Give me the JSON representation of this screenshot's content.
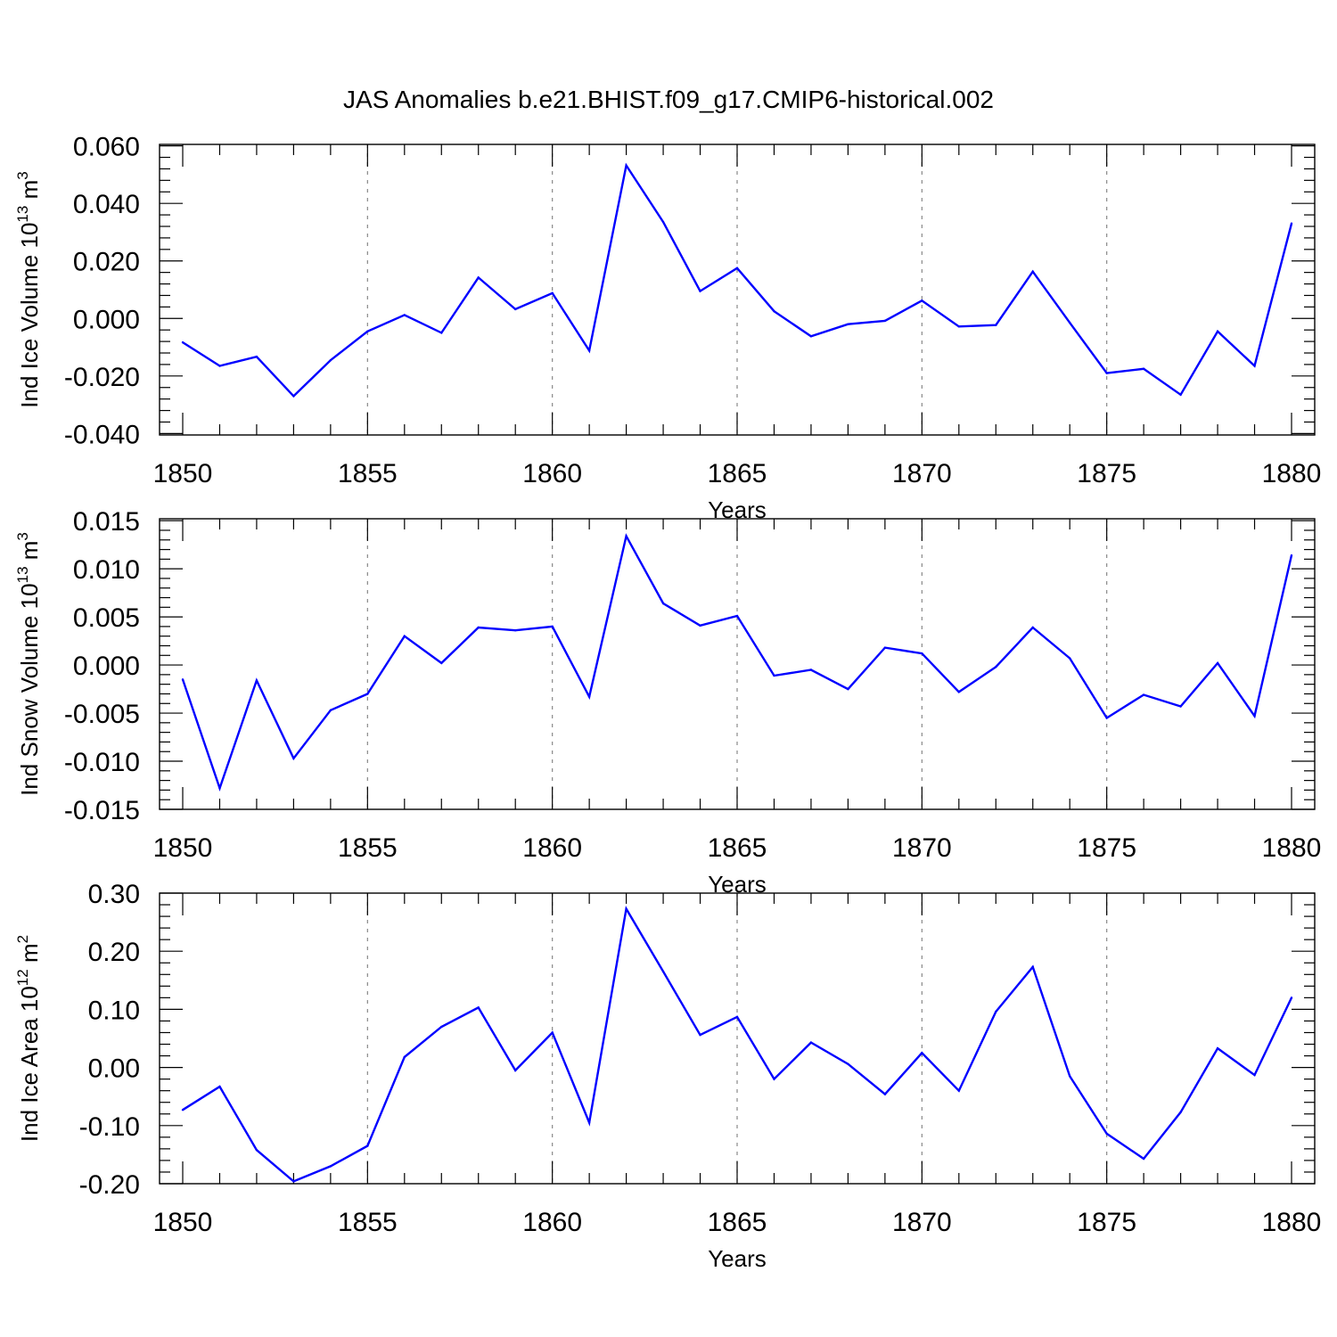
{
  "title": "JAS Anomalies b.e21.BHIST.f09_g17.CMIP6-historical.002",
  "colors": {
    "series": "#0000ff",
    "axis": "#000000",
    "grid": "#888888"
  },
  "chart_data": [
    {
      "type": "line",
      "ylabel": "Ind Ice Volume 10",
      "ylabel_exp": "13",
      "ylabel_unit": " m",
      "ylabel_unit_exp": "3",
      "xlabel": "Years",
      "xlim": [
        1850,
        1880
      ],
      "ylim": [
        -0.04,
        0.06
      ],
      "ymin_plot": -0.0405,
      "ymax_plot": 0.0605,
      "xticks": [
        1850,
        1855,
        1860,
        1865,
        1870,
        1875,
        1880
      ],
      "xtick_labels": [
        "1850",
        "1855",
        "1860",
        "1865",
        "1870",
        "1875",
        "1880"
      ],
      "yticks": [
        -0.04,
        -0.02,
        0.0,
        0.02,
        0.04,
        0.06
      ],
      "ytick_labels": [
        "-0.040",
        "-0.020",
        "0.000",
        "0.020",
        "0.040",
        "0.060"
      ],
      "grid": "dashed vertical at major x ticks",
      "x": [
        1850,
        1851,
        1852,
        1853,
        1854,
        1855,
        1856,
        1857,
        1858,
        1859,
        1860,
        1861,
        1862,
        1863,
        1864,
        1865,
        1866,
        1867,
        1868,
        1869,
        1870,
        1871,
        1872,
        1873,
        1874,
        1875,
        1876,
        1877,
        1878,
        1879,
        1880
      ],
      "y": [
        -0.0083,
        -0.0165,
        -0.0133,
        -0.027,
        -0.0145,
        -0.0045,
        0.0012,
        -0.005,
        0.0142,
        0.0032,
        0.0088,
        -0.0112,
        0.0532,
        0.0335,
        0.0095,
        0.0175,
        0.0025,
        -0.0062,
        -0.002,
        -0.0008,
        0.0062,
        -0.0028,
        -0.0023,
        0.0163,
        -0.0015,
        -0.019,
        -0.0175,
        -0.0265,
        -0.0045,
        -0.0165,
        0.033
      ]
    },
    {
      "type": "line",
      "ylabel": "Ind Snow Volume 10",
      "ylabel_exp": "13",
      "ylabel_unit": " m",
      "ylabel_unit_exp": "3",
      "xlabel": "Years",
      "xlim": [
        1850,
        1880
      ],
      "ylim": [
        -0.015,
        0.015
      ],
      "ymin_plot": -0.015,
      "ymax_plot": 0.0152,
      "xticks": [
        1850,
        1855,
        1860,
        1865,
        1870,
        1875,
        1880
      ],
      "xtick_labels": [
        "1850",
        "1855",
        "1860",
        "1865",
        "1870",
        "1875",
        "1880"
      ],
      "yticks": [
        -0.015,
        -0.01,
        -0.005,
        0.0,
        0.005,
        0.01,
        0.015
      ],
      "ytick_labels": [
        "-0.015",
        "-0.010",
        "-0.005",
        "0.000",
        "0.005",
        "0.010",
        "0.015"
      ],
      "grid": "dashed vertical at major x ticks",
      "x": [
        1850,
        1851,
        1852,
        1853,
        1854,
        1855,
        1856,
        1857,
        1858,
        1859,
        1860,
        1861,
        1862,
        1863,
        1864,
        1865,
        1866,
        1867,
        1868,
        1869,
        1870,
        1871,
        1872,
        1873,
        1874,
        1875,
        1876,
        1877,
        1878,
        1879,
        1880
      ],
      "y": [
        -0.0015,
        -0.0128,
        -0.0016,
        -0.0097,
        -0.0047,
        -0.003,
        0.003,
        0.0002,
        0.0039,
        0.0036,
        0.004,
        -0.0033,
        0.0134,
        0.0064,
        0.0041,
        0.0051,
        -0.0011,
        -0.0005,
        -0.0025,
        0.0018,
        0.0012,
        -0.0028,
        -0.0002,
        0.0039,
        0.0007,
        -0.0055,
        -0.0031,
        -0.0043,
        0.0002,
        -0.0053,
        0.0114
      ]
    },
    {
      "type": "line",
      "ylabel": "Ind Ice Area 10",
      "ylabel_exp": "12",
      "ylabel_unit": " m",
      "ylabel_unit_exp": "2",
      "xlabel": "Years",
      "xlim": [
        1850,
        1880
      ],
      "ylim": [
        -0.2,
        0.3
      ],
      "ymin_plot": -0.2,
      "ymax_plot": 0.3,
      "xticks": [
        1850,
        1855,
        1860,
        1865,
        1870,
        1875,
        1880
      ],
      "xtick_labels": [
        "1850",
        "1855",
        "1860",
        "1865",
        "1870",
        "1875",
        "1880"
      ],
      "yticks": [
        -0.2,
        -0.1,
        0.0,
        0.1,
        0.2,
        0.3
      ],
      "ytick_labels": [
        "-0.20",
        "-0.10",
        "0.00",
        "0.10",
        "0.20",
        "0.30"
      ],
      "grid": "dashed vertical at major x ticks",
      "x": [
        1850,
        1851,
        1852,
        1853,
        1854,
        1855,
        1856,
        1857,
        1858,
        1859,
        1860,
        1861,
        1862,
        1863,
        1864,
        1865,
        1866,
        1867,
        1868,
        1869,
        1870,
        1871,
        1872,
        1873,
        1874,
        1875,
        1876,
        1877,
        1878,
        1879,
        1880
      ],
      "y": [
        -0.073,
        -0.033,
        -0.142,
        -0.196,
        -0.17,
        -0.135,
        0.018,
        0.07,
        0.103,
        -0.005,
        0.06,
        -0.095,
        0.273,
        0.165,
        0.056,
        0.087,
        -0.02,
        0.043,
        0.006,
        -0.046,
        0.025,
        -0.04,
        0.096,
        0.173,
        -0.015,
        -0.114,
        -0.157,
        -0.077,
        0.033,
        -0.013,
        0.12
      ]
    }
  ]
}
